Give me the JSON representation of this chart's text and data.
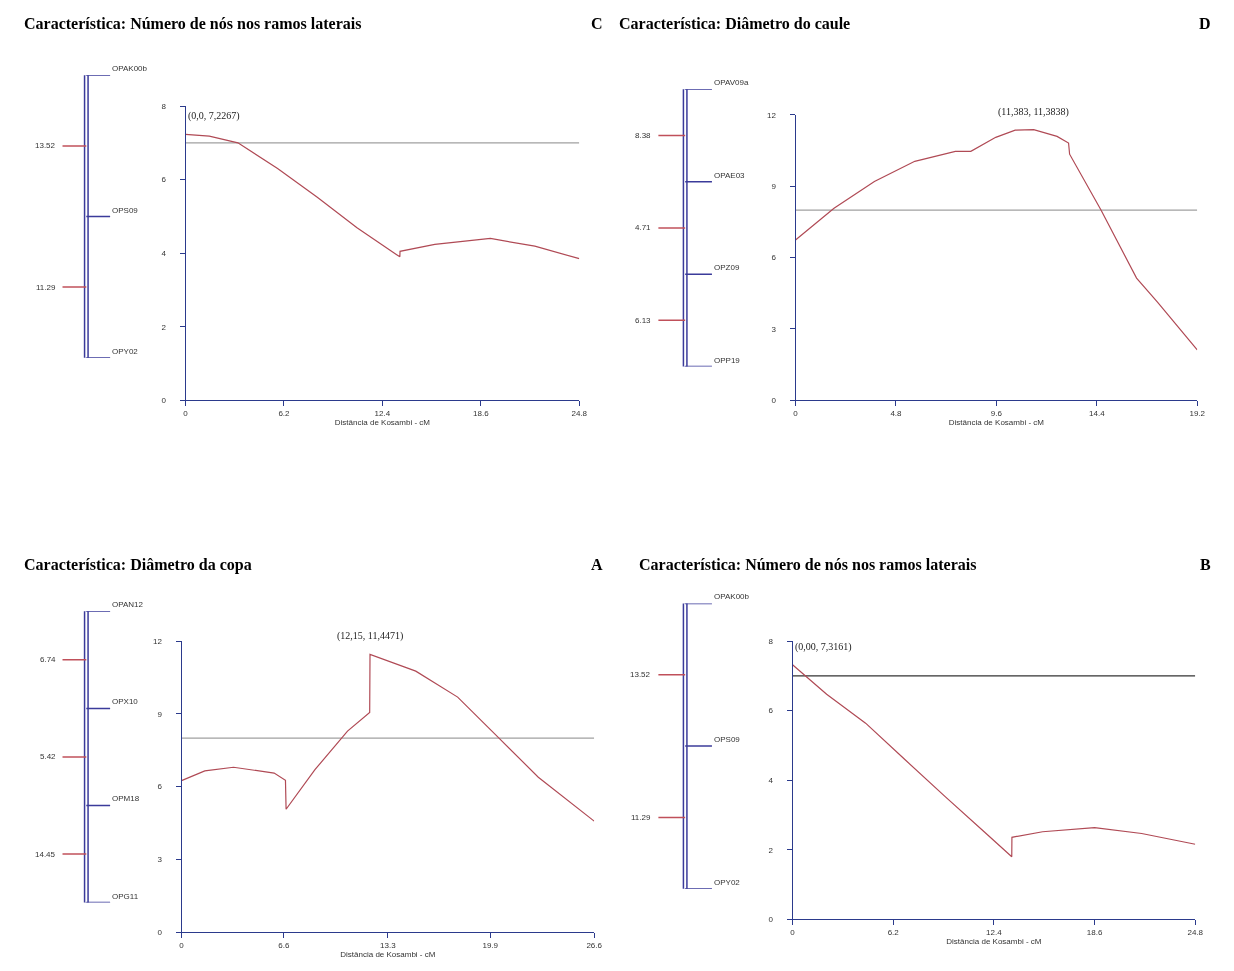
{
  "chart_data": [
    {
      "type": "other",
      "categories": [
        "OPAK00b",
        "OPS09",
        "OPY02"
      ],
      "color": "#3b3b9a",
      "annotations": [
        "13.52",
        "11.29"
      ]
    },
    {
      "type": "line",
      "title": "Característica: Número de nós nos ramos laterais",
      "xlabel": "Distância de Kosambi - cM",
      "annotations": [
        {
          "text": "(0,0, 7,2267)",
          "x": 0,
          "y": 7.2267
        },
        "C"
      ],
      "xlim": [
        0,
        24.8
      ],
      "xticks": [
        0,
        6.2,
        12.4,
        18.6,
        24.8
      ],
      "ylim": [
        0,
        8
      ],
      "yticks": [
        0,
        2,
        4,
        6,
        8
      ],
      "ref_lines": [
        {
          "axis": "y",
          "value": 7,
          "color": "#a0a0a0"
        }
      ],
      "series": [
        {
          "color": "#b04a55",
          "x": [
            0,
            1.5,
            3.3,
            5.8,
            8.3,
            10.8,
            13.3,
            13.5,
            13.51,
            15.7,
            19.2,
            22,
            24.8
          ],
          "values": [
            7.23,
            7.18,
            7.0,
            6.3,
            5.52,
            4.69,
            3.96,
            3.9,
            4.05,
            4.24,
            4.4,
            4.19,
            3.85
          ]
        }
      ]
    },
    {
      "type": "other",
      "categories": [
        "OPAV09a",
        "OPAE03",
        "OPZ09",
        "OPP19"
      ],
      "color": "#3b3b9a",
      "annotations": [
        "8.38",
        "4.71",
        "6.13"
      ]
    },
    {
      "type": "line",
      "title": "Característica: Diâmetro do caule",
      "xlabel": "Distância de Kosambi - cM",
      "annotations": [
        {
          "text": "(11,383, 11,3838)",
          "x": 11.383,
          "y": 11.3838
        },
        "D"
      ],
      "xlim": [
        0,
        19.2
      ],
      "xticks": [
        0,
        4.8,
        9.6,
        14.4,
        19.2
      ],
      "ylim": [
        0,
        12
      ],
      "yticks": [
        0,
        3,
        6,
        9,
        12
      ],
      "ref_lines": [
        {
          "axis": "y",
          "value": 8,
          "color": "#a0a0a0"
        }
      ],
      "series": [
        {
          "color": "#b04a55",
          "x": [
            0,
            1.84,
            3.77,
            5.7,
            7.64,
            8.38,
            9.57,
            10.5,
            11.383,
            12.5,
            13.05,
            13.1,
            14.6,
            16.3,
            17.3,
            19.2
          ],
          "values": [
            6.74,
            8.08,
            9.2,
            10.05,
            10.47,
            10.47,
            11.06,
            11.36,
            11.38,
            11.1,
            10.82,
            10.35,
            8.0,
            5.14,
            4.13,
            2.12
          ]
        }
      ]
    },
    {
      "type": "other",
      "categories": [
        "OPAN12",
        "OPX10",
        "OPM18",
        "OPG11"
      ],
      "color": "#3b3b9a",
      "annotations": [
        "6.74",
        "5.42",
        "14.45"
      ]
    },
    {
      "type": "line",
      "title": "Característica: Diâmetro da copa",
      "xlabel": "Distância de Kosambi - cM",
      "annotations": [
        {
          "text": "(12,15, 11,4471)",
          "x": 12.15,
          "y": 11.4471
        },
        "A"
      ],
      "xlim": [
        0,
        26.6
      ],
      "xticks": [
        0,
        6.6,
        13.3,
        19.9,
        26.6
      ],
      "ylim": [
        0,
        12
      ],
      "yticks": [
        0,
        3,
        6,
        9,
        12
      ],
      "ref_lines": [
        {
          "axis": "y",
          "value": 8,
          "color": "#a0a0a0"
        }
      ],
      "series": [
        {
          "color": "#b04a55",
          "x": [
            0,
            1.5,
            3.35,
            5.97,
            6.7,
            6.74,
            8.6,
            10.7,
            12.13,
            12.15,
            15.1,
            17.8,
            20.4,
            23.0,
            26.6
          ],
          "values": [
            6.25,
            6.65,
            6.8,
            6.56,
            6.26,
            5.07,
            6.7,
            8.29,
            9.06,
            11.45,
            10.76,
            9.69,
            8.04,
            6.39,
            4.58
          ]
        }
      ]
    },
    {
      "type": "other",
      "categories": [
        "OPAK00b",
        "OPS09",
        "OPY02"
      ],
      "color": "#3b3b9a",
      "annotations": [
        "13.52",
        "11.29"
      ]
    },
    {
      "type": "line",
      "title": "Característica: Número de nós nos ramos laterais",
      "xlabel": "Distância de Kosambi - cM",
      "annotations": [
        {
          "text": "(0,00, 7,3161)",
          "x": 0,
          "y": 7.3161
        },
        "B"
      ],
      "xlim": [
        0,
        24.8
      ],
      "xticks": [
        0,
        6.2,
        12.4,
        18.6,
        24.8
      ],
      "ylim": [
        0,
        8
      ],
      "yticks": [
        0,
        2,
        4,
        6,
        8
      ],
      "ref_lines": [
        {
          "axis": "y",
          "value": 7,
          "color": "#333333"
        }
      ],
      "series": [
        {
          "color": "#b04a55",
          "x": [
            0,
            2.1,
            4.5,
            6.95,
            9.4,
            11.8,
            13.5,
            13.51,
            15.4,
            18.6,
            21.5,
            24.8
          ],
          "values": [
            7.32,
            6.47,
            5.64,
            4.58,
            3.53,
            2.52,
            1.8,
            2.36,
            2.52,
            2.64,
            2.47,
            2.16
          ]
        }
      ]
    }
  ]
}
